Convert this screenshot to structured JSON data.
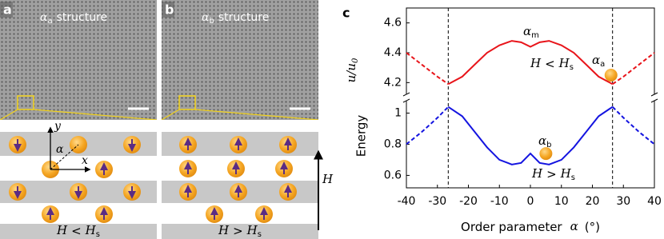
{
  "panels": [
    {
      "label": "a",
      "title": {
        "symbol": "α",
        "sub": "a",
        "rest": "structure"
      },
      "caption": {
        "lhs": "H",
        "op": "<",
        "rhs": "H",
        "sub": "s"
      },
      "axes": {
        "x": "x",
        "y": "y",
        "angle": "α"
      }
    },
    {
      "label": "b",
      "title": {
        "symbol": "α",
        "sub": "b",
        "rest": "structure"
      },
      "caption": {
        "lhs": "H",
        "op": ">",
        "rhs": "H",
        "sub": "s"
      },
      "field": "H"
    }
  ],
  "chart_data": {
    "type": "line",
    "label": "c",
    "xlabel": {
      "text": "Order parameter",
      "symbol": "α",
      "unit": "(°)"
    },
    "ylabel": {
      "text": "Energy",
      "symbol": "u/u",
      "sub": "0"
    },
    "xlim": [
      -40,
      40
    ],
    "xticks": [
      -40,
      -30,
      -20,
      -10,
      0,
      10,
      20,
      30,
      40
    ],
    "upper": {
      "ylim": [
        4.1,
        4.7
      ],
      "yticks": [
        4.2,
        4.4,
        4.6
      ]
    },
    "lower": {
      "ylim": [
        0.52,
        1.1
      ],
      "yticks": [
        0.6,
        0.8,
        1
      ]
    },
    "vlines": [
      -26.5,
      26.5
    ],
    "series": [
      {
        "color": "#e8141a",
        "style": "dashed",
        "axis": "upper",
        "x": [
          -40,
          -35,
          -30,
          -26.5
        ],
        "values": [
          4.4,
          4.32,
          4.24,
          4.19
        ]
      },
      {
        "color": "#e8141a",
        "style": "solid",
        "axis": "upper",
        "x": [
          -26.5,
          -22,
          -18,
          -14,
          -10,
          -6,
          -3,
          0,
          3,
          6,
          10,
          14,
          18,
          22,
          26.5
        ],
        "values": [
          4.19,
          4.24,
          4.32,
          4.4,
          4.45,
          4.48,
          4.47,
          4.44,
          4.47,
          4.48,
          4.45,
          4.4,
          4.32,
          4.24,
          4.19
        ]
      },
      {
        "color": "#e8141a",
        "style": "dashed",
        "axis": "upper",
        "x": [
          26.5,
          30,
          35,
          40
        ],
        "values": [
          4.19,
          4.24,
          4.32,
          4.4
        ]
      },
      {
        "color": "#1414e0",
        "style": "dashed",
        "axis": "lower",
        "x": [
          -40,
          -35,
          -30,
          -26.5
        ],
        "values": [
          0.8,
          0.88,
          0.97,
          1.04
        ]
      },
      {
        "color": "#1414e0",
        "style": "solid",
        "axis": "lower",
        "x": [
          -26.5,
          -22,
          -18,
          -14,
          -10,
          -6,
          -3,
          0,
          3,
          6,
          10,
          14,
          18,
          22,
          26.5
        ],
        "values": [
          1.04,
          0.98,
          0.88,
          0.78,
          0.7,
          0.67,
          0.68,
          0.74,
          0.68,
          0.67,
          0.7,
          0.78,
          0.88,
          0.98,
          1.04
        ]
      },
      {
        "color": "#1414e0",
        "style": "dashed",
        "axis": "lower",
        "x": [
          26.5,
          30,
          35,
          40
        ],
        "values": [
          1.04,
          0.97,
          0.88,
          0.8
        ]
      }
    ],
    "annotations": [
      {
        "symbol": "α",
        "sub": "m"
      },
      {
        "symbol": "α",
        "sub": "a"
      },
      {
        "symbol": "α",
        "sub": "b"
      },
      {
        "lhs": "H",
        "op": "<",
        "rhs": "H",
        "sub": "s"
      },
      {
        "lhs": "H",
        "op": ">",
        "rhs": "H",
        "sub": "s"
      }
    ]
  }
}
